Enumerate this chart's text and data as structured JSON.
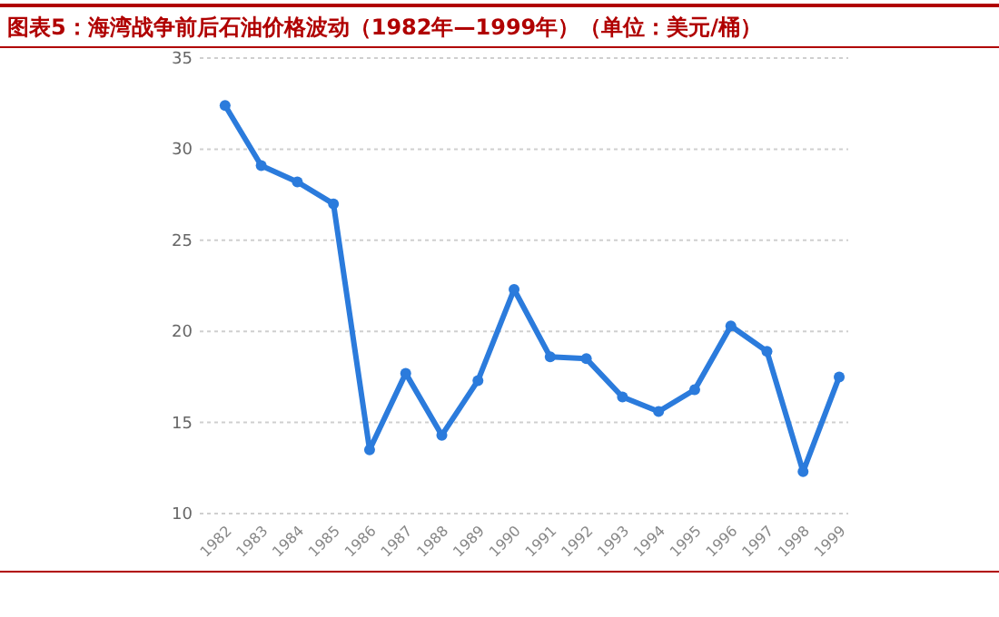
{
  "chart_data": {
    "type": "line",
    "title": "图表5：海湾战争前后石油价格波动（1982年—1999年）（单位：美元/桶）",
    "categories": [
      "1982",
      "1983",
      "1984",
      "1985",
      "1986",
      "1987",
      "1988",
      "1989",
      "1990",
      "1991",
      "1992",
      "1993",
      "1994",
      "1995",
      "1996",
      "1997",
      "1998",
      "1999"
    ],
    "series": [
      {
        "color": "#2b7bdc",
        "values": [
          32.4,
          29.1,
          28.2,
          27.0,
          13.5,
          17.7,
          14.3,
          17.3,
          22.3,
          18.6,
          18.5,
          16.4,
          15.6,
          16.8,
          20.3,
          18.9,
          12.3,
          17.5
        ]
      }
    ],
    "ylim": [
      10,
      35
    ],
    "yticks": [
      10,
      15,
      20,
      25,
      30,
      35
    ],
    "grid": "y",
    "marker": "circle",
    "line_style": "solid"
  }
}
